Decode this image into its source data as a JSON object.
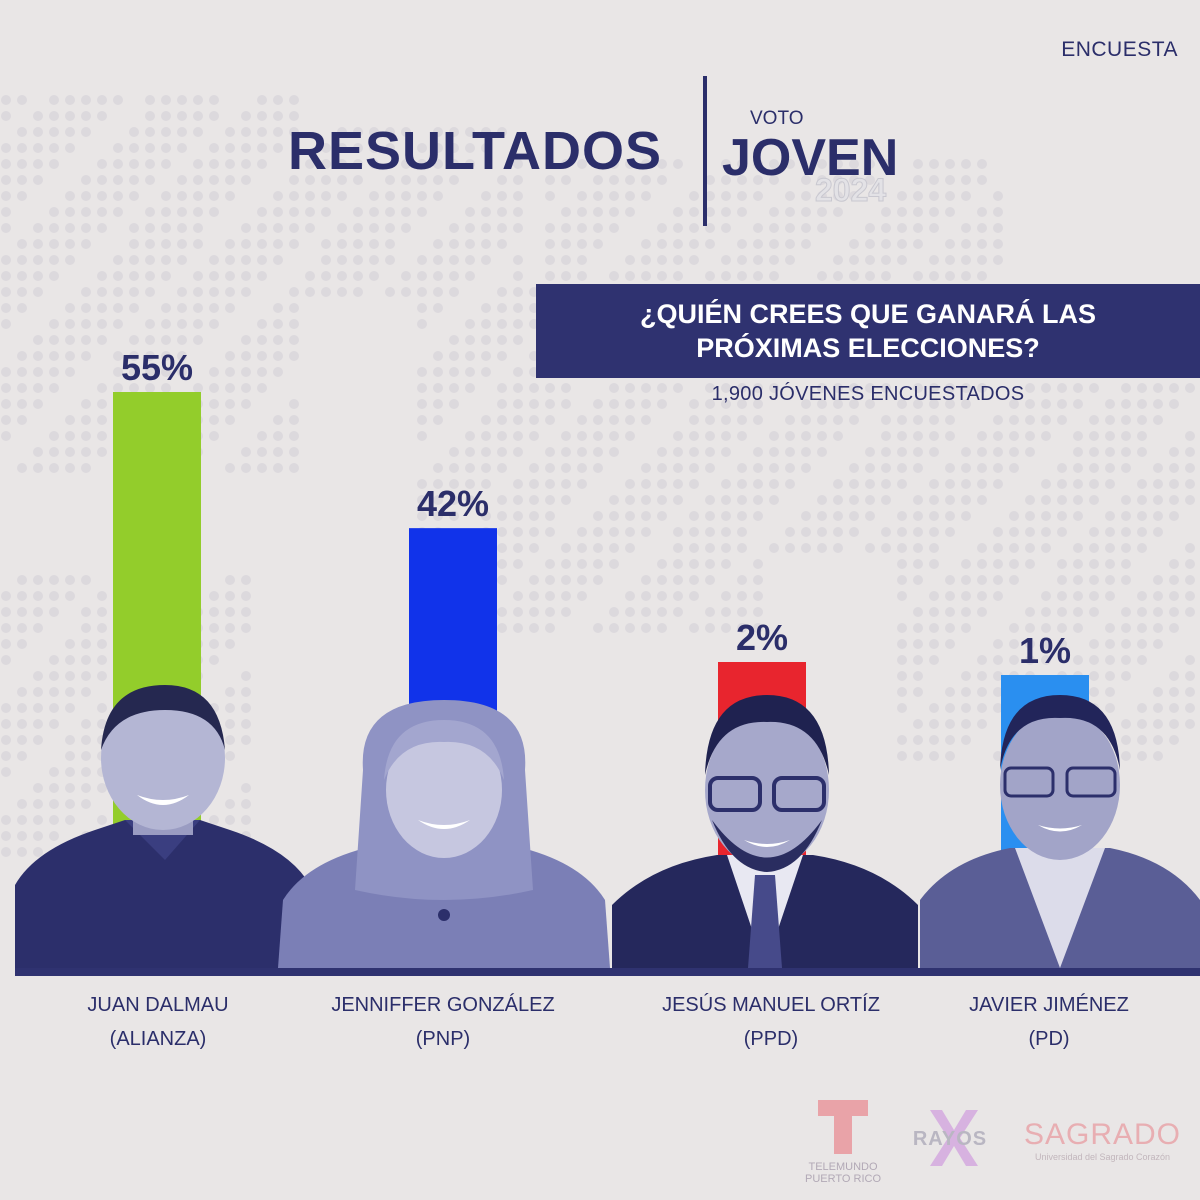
{
  "header": {
    "tag": "ENCUESTA",
    "title": "RESULTADOS",
    "brand_small": "VOTO",
    "brand_big": "JOVEN",
    "brand_year": "2024"
  },
  "question": {
    "line1": "¿QUIÉN CREES QUE GANARÁ LAS",
    "line2": "PRÓXIMAS ELECCIONES?",
    "sample": "1,900 JÓVENES ENCUESTADOS"
  },
  "chart_data": {
    "type": "bar",
    "categories": [
      "JUAN DALMAU (ALIANZA)",
      "JENNIFFER GONZÁLEZ (PNP)",
      "JESÚS MANUEL ORTÍZ (PPD)",
      "JAVIER JIMÉNEZ (PD)"
    ],
    "values": [
      55,
      42,
      2,
      1
    ],
    "value_labels": [
      "55%",
      "42%",
      "2%",
      "1%"
    ],
    "colors": [
      "#93cd2b",
      "#1133ea",
      "#e8252e",
      "#2a8ff0"
    ],
    "title": "¿QUIÉN CREES QUE GANARÁ LAS PRÓXIMAS ELECCIONES?",
    "grid": false,
    "legend": "none"
  },
  "candidates": [
    {
      "name": "JUAN DALMAU",
      "party": "(ALIANZA)"
    },
    {
      "name": "JENNIFFER GONZÁLEZ",
      "party": "(PNP)"
    },
    {
      "name": "JESÚS MANUEL ORTÍZ",
      "party": "(PPD)"
    },
    {
      "name": "JAVIER JIMÉNEZ",
      "party": "(PD)"
    }
  ],
  "logos": {
    "telemundo_line1": "TELEMUNDO",
    "telemundo_line2": "PUERTO RICO",
    "rayos": "RAYOS",
    "sagrado": "SAGRADO",
    "sagrado_sub": "Universidad del Sagrado Corazón"
  }
}
